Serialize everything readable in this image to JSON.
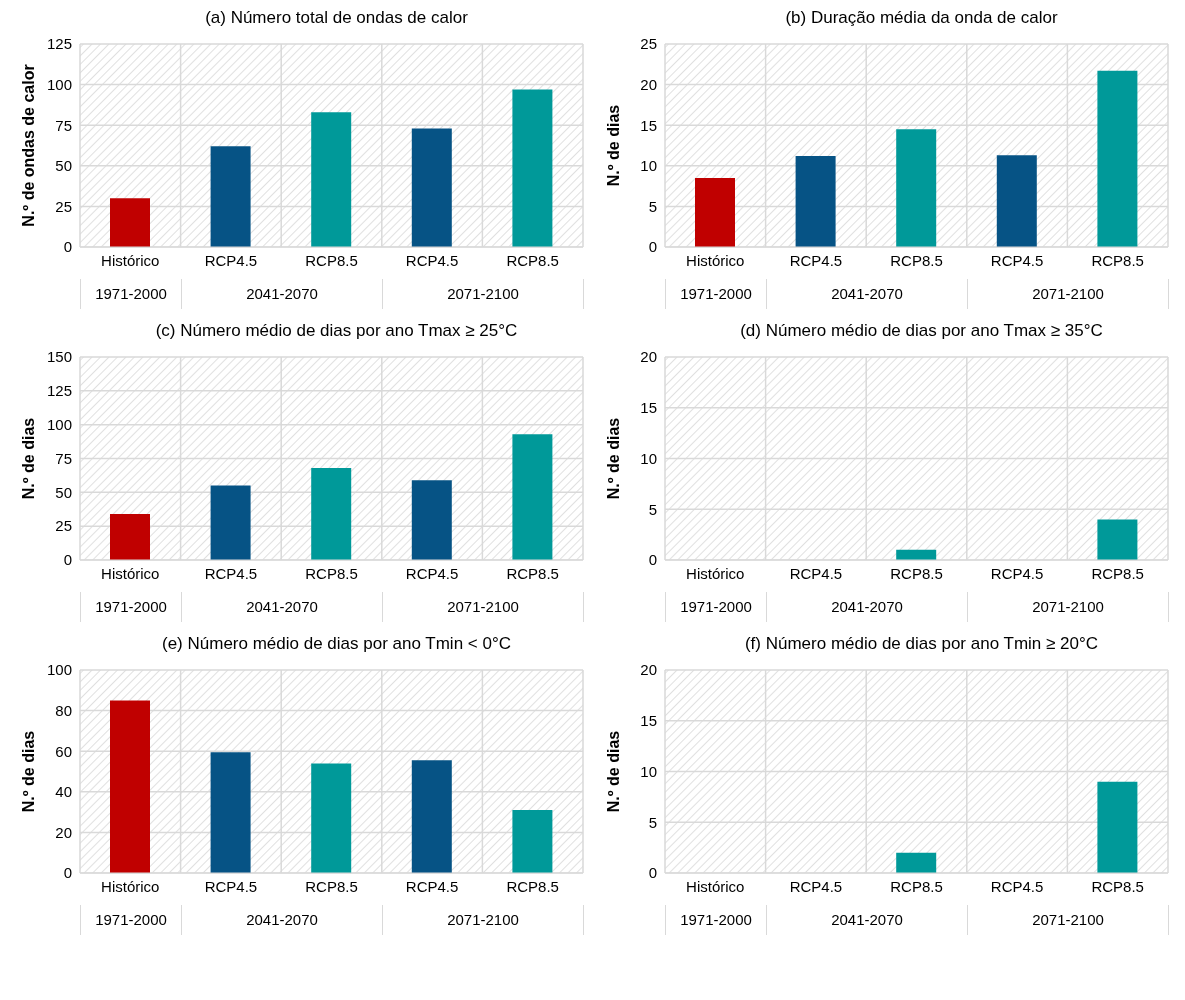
{
  "chart_data": [
    {
      "type": "bar",
      "title": "(a) Número total de ondas de calor",
      "ylabel": "N.º de ondas de calor",
      "categories": [
        "Histórico",
        "RCP4.5",
        "RCP8.5",
        "RCP4.5",
        "RCP8.5"
      ],
      "values": [
        30,
        62,
        83,
        73,
        97
      ],
      "colors": [
        "#c00000",
        "#065385",
        "#009999",
        "#065385",
        "#009999"
      ],
      "ylim": [
        0,
        125
      ],
      "yticks": [
        0,
        25,
        50,
        75,
        100,
        125
      ],
      "grid": true,
      "annotations": [
        "1971-2000",
        "2041-2070",
        "2071-2100"
      ]
    },
    {
      "type": "bar",
      "title": "(b) Duração média da onda de calor",
      "ylabel": "N.º de dias",
      "categories": [
        "Histórico",
        "RCP4.5",
        "RCP8.5",
        "RCP4.5",
        "RCP8.5"
      ],
      "values": [
        8.5,
        11.2,
        14.5,
        11.3,
        21.7
      ],
      "colors": [
        "#c00000",
        "#065385",
        "#009999",
        "#065385",
        "#009999"
      ],
      "ylim": [
        0,
        25
      ],
      "yticks": [
        0,
        5,
        10,
        15,
        20,
        25
      ],
      "grid": true,
      "annotations": [
        "1971-2000",
        "2041-2070",
        "2071-2100"
      ]
    },
    {
      "type": "bar",
      "title": "(c) Número médio de dias por ano Tmax ≥ 25°C",
      "ylabel": "N.º de dias",
      "categories": [
        "Histórico",
        "RCP4.5",
        "RCP8.5",
        "RCP4.5",
        "RCP8.5"
      ],
      "values": [
        34,
        55,
        68,
        59,
        93
      ],
      "colors": [
        "#c00000",
        "#065385",
        "#009999",
        "#065385",
        "#009999"
      ],
      "ylim": [
        0,
        150
      ],
      "yticks": [
        0,
        25,
        50,
        75,
        100,
        125,
        150
      ],
      "grid": true,
      "annotations": [
        "1971-2000",
        "2041-2070",
        "2071-2100"
      ]
    },
    {
      "type": "bar",
      "title": "(d) Número médio de dias por ano Tmax ≥ 35°C",
      "ylabel": "N.º de dias",
      "categories": [
        "Histórico",
        "RCP4.5",
        "RCP8.5",
        "RCP4.5",
        "RCP8.5"
      ],
      "values": [
        0,
        0,
        1,
        0,
        4
      ],
      "colors": [
        "#c00000",
        "#065385",
        "#009999",
        "#065385",
        "#009999"
      ],
      "ylim": [
        0,
        20
      ],
      "yticks": [
        0,
        5,
        10,
        15,
        20
      ],
      "grid": true,
      "annotations": [
        "1971-2000",
        "2041-2070",
        "2071-2100"
      ]
    },
    {
      "type": "bar",
      "title": "(e) Número médio de dias por ano Tmin < 0°C",
      "ylabel": "N.º de dias",
      "categories": [
        "Histórico",
        "RCP4.5",
        "RCP8.5",
        "RCP4.5",
        "RCP8.5"
      ],
      "values": [
        85,
        59.5,
        54,
        55.5,
        31
      ],
      "colors": [
        "#c00000",
        "#065385",
        "#009999",
        "#065385",
        "#009999"
      ],
      "ylim": [
        0,
        100
      ],
      "yticks": [
        0,
        20,
        40,
        60,
        80,
        100
      ],
      "grid": true,
      "annotations": [
        "1971-2000",
        "2041-2070",
        "2071-2100"
      ]
    },
    {
      "type": "bar",
      "title": "(f) Número médio de dias por ano Tmin ≥ 20°C",
      "ylabel": "N.º de dias",
      "categories": [
        "Histórico",
        "RCP4.5",
        "RCP8.5",
        "RCP4.5",
        "RCP8.5"
      ],
      "values": [
        0,
        0,
        2,
        0,
        9
      ],
      "colors": [
        "#c00000",
        "#065385",
        "#009999",
        "#065385",
        "#009999"
      ],
      "ylim": [
        0,
        20
      ],
      "yticks": [
        0,
        5,
        10,
        15,
        20
      ],
      "grid": true,
      "annotations": [
        "1971-2000",
        "2041-2070",
        "2071-2100"
      ]
    }
  ]
}
